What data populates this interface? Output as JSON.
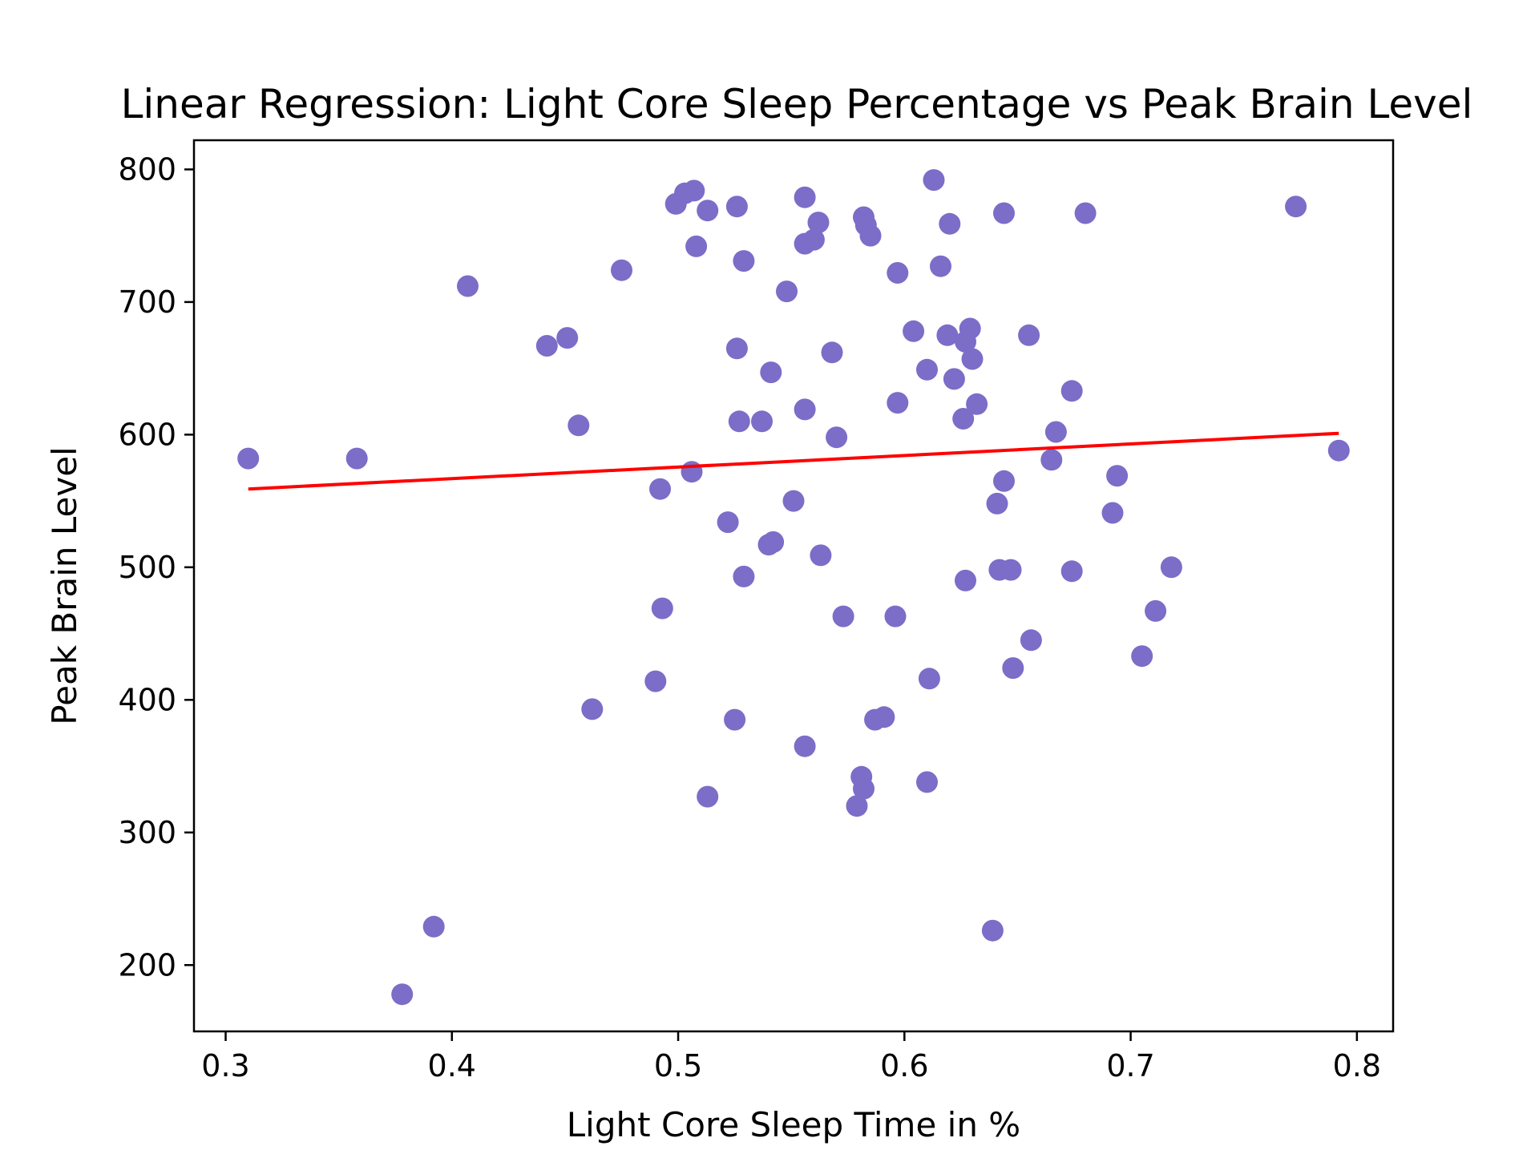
{
  "chart_data": {
    "type": "scatter",
    "title": "Linear Regression: Light Core Sleep Percentage vs Peak Brain Level",
    "xlabel": "Light Core Sleep Time in %",
    "ylabel": "Peak Brain Level",
    "xlim": [
      0.286,
      0.816
    ],
    "ylim": [
      150,
      822
    ],
    "grid": false,
    "xticks": [
      0.3,
      0.4,
      0.5,
      0.6,
      0.7,
      0.8
    ],
    "xtick_labels": [
      "0.3",
      "0.4",
      "0.5",
      "0.6",
      "0.7",
      "0.8"
    ],
    "yticks": [
      200,
      300,
      400,
      500,
      600,
      700,
      800
    ],
    "ytick_labels": [
      "200",
      "300",
      "400",
      "500",
      "600",
      "700",
      "800"
    ],
    "colors": {
      "points": "#7b6dc8",
      "regression_line": "#ff0000"
    },
    "regression_line": {
      "x": [
        0.31,
        0.792
      ],
      "y": [
        559,
        601
      ]
    },
    "series": [
      {
        "x": [
          0.31,
          0.358,
          0.378,
          0.392,
          0.407,
          0.442,
          0.451,
          0.456,
          0.462,
          0.475,
          0.49,
          0.492,
          0.493,
          0.499,
          0.503,
          0.506,
          0.507,
          0.508,
          0.513,
          0.513,
          0.522,
          0.525,
          0.526,
          0.526,
          0.527,
          0.529,
          0.529,
          0.537,
          0.54,
          0.541,
          0.542,
          0.548,
          0.551,
          0.556,
          0.556,
          0.556,
          0.556,
          0.56,
          0.562,
          0.563,
          0.568,
          0.57,
          0.573,
          0.579,
          0.581,
          0.582,
          0.582,
          0.583,
          0.585,
          0.587,
          0.591,
          0.596,
          0.597,
          0.597,
          0.604,
          0.61,
          0.61,
          0.611,
          0.613,
          0.616,
          0.619,
          0.62,
          0.622,
          0.626,
          0.627,
          0.627,
          0.629,
          0.63,
          0.632,
          0.639,
          0.641,
          0.642,
          0.644,
          0.644,
          0.647,
          0.648,
          0.655,
          0.656,
          0.665,
          0.667,
          0.674,
          0.674,
          0.68,
          0.692,
          0.694,
          0.705,
          0.711,
          0.718,
          0.773,
          0.792
        ],
        "y": [
          582,
          582,
          178,
          229,
          712,
          667,
          673,
          607,
          393,
          724,
          414,
          559,
          469,
          774,
          782,
          572,
          784,
          742,
          769,
          327,
          534,
          385,
          665,
          772,
          610,
          731,
          493,
          610,
          517,
          647,
          519,
          708,
          550,
          365,
          619,
          744,
          779,
          747,
          760,
          509,
          662,
          598,
          463,
          320,
          342,
          764,
          333,
          758,
          750,
          385,
          387,
          463,
          624,
          722,
          678,
          649,
          338,
          416,
          792,
          727,
          675,
          759,
          642,
          612,
          670,
          490,
          680,
          657,
          623,
          226,
          548,
          498,
          565,
          767,
          498,
          424,
          675,
          445,
          581,
          602,
          633,
          497,
          767,
          541,
          569,
          433,
          467,
          500,
          772,
          588
        ]
      }
    ]
  }
}
